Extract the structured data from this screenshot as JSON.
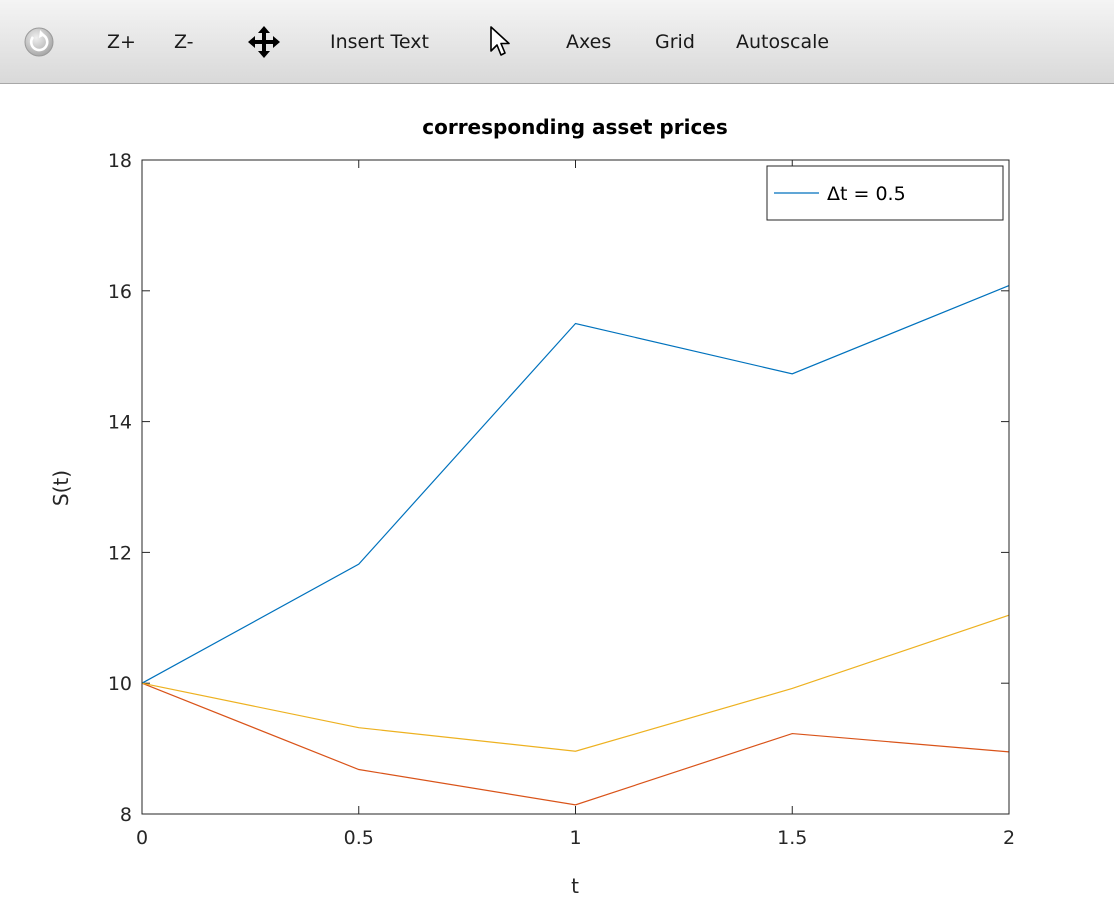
{
  "toolbar": {
    "rotate_icon": "rotate-icon",
    "zoom_in_label": "Z+",
    "zoom_out_label": "Z-",
    "pan_icon": "pan-arrows-icon",
    "insert_text_label": "Insert Text",
    "select_icon": "cursor-arrow-icon",
    "axes_label": "Axes",
    "grid_label": "Grid",
    "autoscale_label": "Autoscale"
  },
  "chart_data": {
    "type": "line",
    "title": "corresponding asset prices",
    "xlabel": "t",
    "ylabel": "S(t)",
    "xlim": [
      0,
      2
    ],
    "ylim": [
      8,
      18
    ],
    "xticks": [
      0,
      0.5,
      1,
      1.5,
      2
    ],
    "xtick_labels": [
      "0",
      "0.5",
      "1",
      "1.5",
      "2"
    ],
    "yticks": [
      8,
      10,
      12,
      14,
      16,
      18
    ],
    "ytick_labels": [
      "8",
      "10",
      "12",
      "14",
      "16",
      "18"
    ],
    "grid": false,
    "legend_position": "top-right",
    "x": [
      0,
      0.5,
      1,
      1.5,
      2
    ],
    "series": [
      {
        "name": "Δt = 0.5",
        "color": "#0072bd",
        "values": [
          10,
          11.82,
          15.5,
          14.73,
          16.08
        ]
      },
      {
        "color": "#d95319",
        "values": [
          10,
          8.68,
          8.14,
          9.23,
          8.95
        ]
      },
      {
        "color": "#edb120",
        "values": [
          10,
          9.32,
          8.96,
          9.92,
          11.04
        ]
      }
    ]
  }
}
